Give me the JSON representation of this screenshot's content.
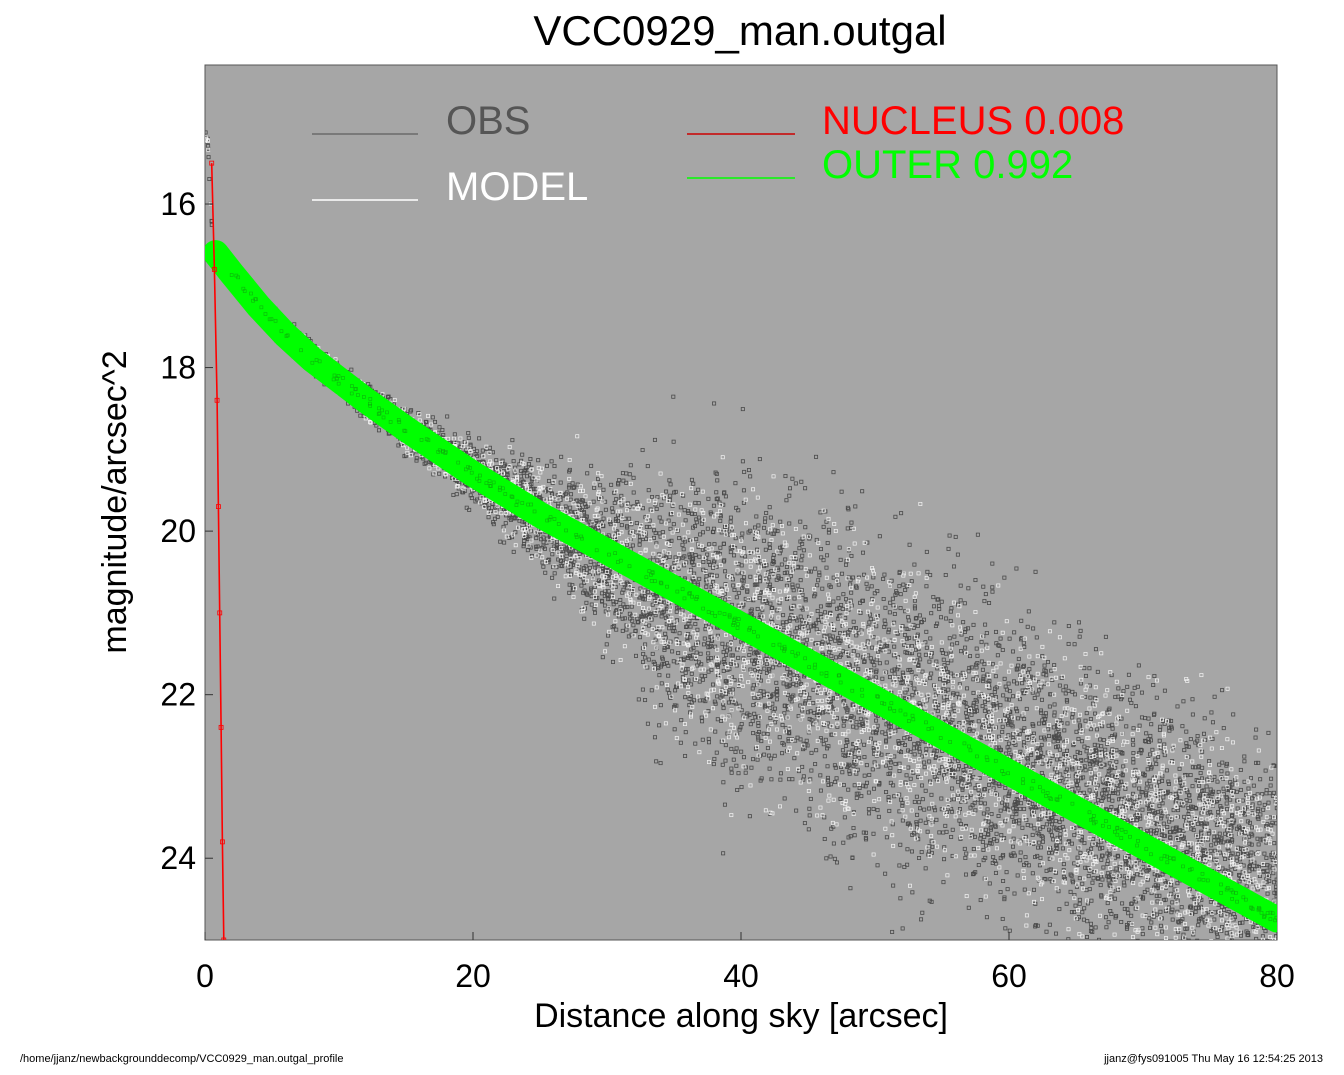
{
  "chart_data": {
    "type": "scatter",
    "title": "VCC0929_man.outgal",
    "xlabel": "Distance along sky [arcsec]",
    "ylabel": "magnitude/arcsec^2",
    "xlim": [
      0,
      80
    ],
    "ylim": [
      25,
      14.3
    ],
    "y_inverted": true,
    "xticks": [
      0,
      20,
      40,
      60,
      80
    ],
    "yticks": [
      16,
      18,
      20,
      22,
      24
    ],
    "plot_background": "#a6a6a6",
    "legend": [
      {
        "label": "OBS",
        "color": "#555555",
        "line_color": "#6a6a6a"
      },
      {
        "label": "MODEL",
        "color": "#ffffff",
        "line_color": "#ffffff"
      },
      {
        "label": "NUCLEUS  0.008",
        "color": "#ff0000",
        "line_color": "#cc0000"
      },
      {
        "label": "OUTER  0.992",
        "color": "#00ff00",
        "line_color": "#00ff00"
      }
    ],
    "series": [
      {
        "name": "OUTER",
        "color": "#00ff00",
        "x": [
          0.8,
          2,
          4,
          6,
          8,
          10,
          12,
          15,
          20,
          25,
          30,
          35,
          40,
          45,
          50,
          55,
          60,
          65,
          70,
          75,
          80
        ],
        "y": [
          16.6,
          16.85,
          17.25,
          17.6,
          17.9,
          18.15,
          18.4,
          18.75,
          19.3,
          19.8,
          20.25,
          20.7,
          21.15,
          21.6,
          22.05,
          22.5,
          22.95,
          23.4,
          23.85,
          24.3,
          24.75
        ]
      },
      {
        "name": "NUCLEUS",
        "color": "#ff0000",
        "x": [
          0.5,
          0.7,
          0.9,
          1.0,
          1.1,
          1.2,
          1.3,
          1.4
        ],
        "y": [
          15.5,
          16.8,
          18.4,
          19.7,
          21.0,
          22.4,
          23.8,
          25.0
        ]
      },
      {
        "name": "OBS",
        "color": "#555555",
        "x": [
          0.2,
          0.4,
          0.6,
          2,
          5,
          10,
          15,
          20,
          25,
          30,
          35,
          40,
          50,
          60,
          70,
          80
        ],
        "y": [
          15.2,
          15.9,
          16.5,
          16.9,
          17.45,
          18.15,
          18.75,
          19.3,
          19.8,
          20.3,
          20.8,
          21.2,
          22.0,
          22.8,
          23.6,
          24.3
        ],
        "scatter_sigma": [
          0.05,
          0.05,
          0.05,
          0.08,
          0.1,
          0.15,
          0.2,
          0.3,
          0.5,
          0.8,
          1.2,
          1.5,
          1.5,
          1.4,
          1.3,
          1.3
        ]
      }
    ]
  },
  "footer": {
    "left": "/home/jjanz/newbackgrounddecomp/VCC0929_man.outgal_profile",
    "right": "jjanz@fys091005  Thu May 16 12:54:25 2013"
  }
}
